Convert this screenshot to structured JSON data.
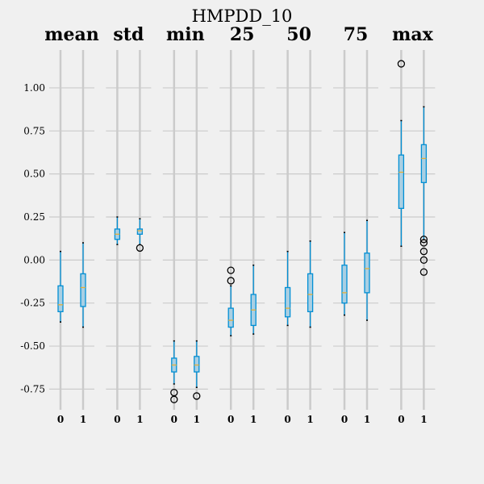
{
  "chart_data": {
    "type": "boxplot",
    "title": "HMPDD_10",
    "y_ticks": [
      1.0,
      0.75,
      0.5,
      0.25,
      0.0,
      -0.25,
      -0.5,
      -0.75
    ],
    "y_tick_labels": [
      "1.00",
      "0.75",
      "0.50",
      "0.25",
      "0.00",
      "-0.25",
      "-0.50",
      "-0.75"
    ],
    "ylim": [
      -0.87,
      1.22
    ],
    "grid": true,
    "colors": {
      "background": "#f0f0f0",
      "grid": "#cbcbcb",
      "box": "#008fd5",
      "box_fill": "#a9cfe3",
      "median": "#e5ae38",
      "flier": "#000000"
    },
    "panels": [
      {
        "title": "mean",
        "categories": [
          "0",
          "1"
        ],
        "boxes": [
          {
            "whislo": -0.36,
            "q1": -0.3,
            "med": -0.26,
            "q3": -0.15,
            "whishi": 0.05,
            "fliers": []
          },
          {
            "whislo": -0.39,
            "q1": -0.27,
            "med": -0.16,
            "q3": -0.08,
            "whishi": 0.1,
            "fliers": []
          }
        ]
      },
      {
        "title": "std",
        "categories": [
          "0",
          "1"
        ],
        "boxes": [
          {
            "whislo": 0.09,
            "q1": 0.12,
            "med": 0.15,
            "q3": 0.18,
            "whishi": 0.25,
            "fliers": []
          },
          {
            "whislo": 0.09,
            "q1": 0.15,
            "med": 0.17,
            "q3": 0.18,
            "whishi": 0.24,
            "fliers": [
              0.07
            ]
          }
        ]
      },
      {
        "title": "min",
        "categories": [
          "0",
          "1"
        ],
        "boxes": [
          {
            "whislo": -0.72,
            "q1": -0.65,
            "med": -0.61,
            "q3": -0.57,
            "whishi": -0.47,
            "fliers": [
              -0.77,
              -0.81
            ]
          },
          {
            "whislo": -0.74,
            "q1": -0.65,
            "med": -0.61,
            "q3": -0.56,
            "whishi": -0.47,
            "fliers": [
              -0.79
            ]
          }
        ]
      },
      {
        "title": "25",
        "categories": [
          "0",
          "1"
        ],
        "boxes": [
          {
            "whislo": -0.44,
            "q1": -0.39,
            "med": -0.35,
            "q3": -0.28,
            "whishi": -0.15,
            "fliers": [
              -0.06,
              -0.12
            ]
          },
          {
            "whislo": -0.43,
            "q1": -0.38,
            "med": -0.29,
            "q3": -0.2,
            "whishi": -0.03,
            "fliers": []
          }
        ]
      },
      {
        "title": "50",
        "categories": [
          "0",
          "1"
        ],
        "boxes": [
          {
            "whislo": -0.38,
            "q1": -0.33,
            "med": -0.28,
            "q3": -0.16,
            "whishi": 0.05,
            "fliers": []
          },
          {
            "whislo": -0.39,
            "q1": -0.3,
            "med": -0.2,
            "q3": -0.08,
            "whishi": 0.11,
            "fliers": []
          }
        ]
      },
      {
        "title": "75",
        "categories": [
          "0",
          "1"
        ],
        "boxes": [
          {
            "whislo": -0.32,
            "q1": -0.25,
            "med": -0.19,
            "q3": -0.03,
            "whishi": 0.16,
            "fliers": []
          },
          {
            "whislo": -0.35,
            "q1": -0.19,
            "med": -0.05,
            "q3": 0.04,
            "whishi": 0.23,
            "fliers": []
          }
        ]
      },
      {
        "title": "max",
        "categories": [
          "0",
          "1"
        ],
        "boxes": [
          {
            "whislo": 0.08,
            "q1": 0.3,
            "med": 0.51,
            "q3": 0.61,
            "whishi": 0.81,
            "fliers": [
              1.14
            ]
          },
          {
            "whislo": 0.12,
            "q1": 0.45,
            "med": 0.59,
            "q3": 0.67,
            "whishi": 0.89,
            "fliers": [
              0.12,
              0.1,
              0.05,
              0.0,
              -0.07
            ]
          }
        ]
      }
    ]
  }
}
